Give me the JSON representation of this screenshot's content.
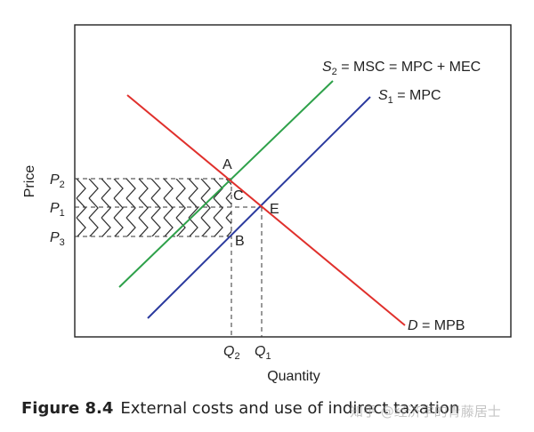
{
  "axes": {
    "y_label": "Price",
    "x_label": "Quantity"
  },
  "curves": {
    "s2": {
      "var": "S",
      "sub": "2",
      "rest": " = MSC = MPC + MEC",
      "color": "#2ea14a"
    },
    "s1": {
      "var": "S",
      "sub": "1",
      "rest": " = MPC",
      "color": "#2b3a9e"
    },
    "d": {
      "var": "D",
      "rest": " = MPB",
      "color": "#e0302c"
    }
  },
  "prices": [
    {
      "var": "P",
      "sub": "2"
    },
    {
      "var": "P",
      "sub": "1"
    },
    {
      "var": "P",
      "sub": "3"
    }
  ],
  "quantities": [
    {
      "var": "Q",
      "sub": "2"
    },
    {
      "var": "Q",
      "sub": "1"
    }
  ],
  "points": {
    "a": "A",
    "b": "B",
    "c": "C",
    "e": "E"
  },
  "caption": {
    "figure": "Figure 8.4",
    "text": "External costs and use of indirect taxation"
  },
  "watermark": "知乎 @经济学的青藤居士"
}
